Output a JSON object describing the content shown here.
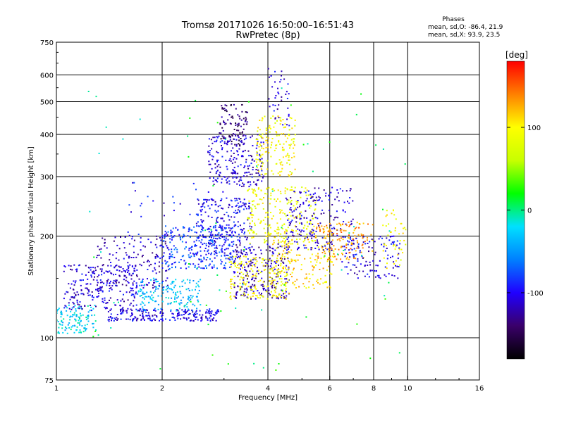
{
  "chart_data": {
    "type": "scatter",
    "title": "Tromsø 20171026 16:50:00–16:51:43",
    "subtitle": "RwPretec (8p)",
    "phases": {
      "heading": "Phases",
      "line_o": "mean, sd,O: -86.4, 21.9",
      "line_x": "mean, sd,X:  93.9, 23.5"
    },
    "xlabel": "Frequency [MHz]",
    "ylabel": "Stationary phase Virtual Height [km]",
    "x_scale": "log",
    "y_scale": "log",
    "xlim": [
      1,
      16
    ],
    "ylim": [
      75,
      750
    ],
    "x_ticks": [
      1,
      2,
      4,
      6,
      8,
      10,
      16
    ],
    "y_ticks": [
      75,
      100,
      200,
      300,
      400,
      500,
      600,
      750
    ],
    "x_grid": [
      2,
      4,
      6,
      8,
      10
    ],
    "y_grid": [
      100,
      200,
      300,
      400,
      500,
      600
    ],
    "grid": true,
    "colorbar": {
      "unit": "[deg]",
      "ticks": [
        100,
        0,
        -100
      ],
      "range": [
        -180,
        180
      ],
      "stops": [
        "#000000",
        "#3a006a",
        "#2000ff",
        "#0080ff",
        "#00e0ff",
        "#00ff00",
        "#c8ff00",
        "#ffff00",
        "#ff8000",
        "#ff0000"
      ]
    },
    "clusters": [
      {
        "x": [
          1.0,
          1.3
        ],
        "y": [
          103,
          125
        ],
        "phase": -25,
        "n": 120
      },
      {
        "x": [
          1.05,
          1.7
        ],
        "y": [
          120,
          165
        ],
        "phase": -110,
        "n": 260
      },
      {
        "x": [
          1.3,
          2.1
        ],
        "y": [
          140,
          200
        ],
        "phase": -115,
        "n": 160
      },
      {
        "x": [
          1.4,
          2.9
        ],
        "y": [
          112,
          122
        ],
        "phase": -105,
        "n": 220
      },
      {
        "x": [
          1.7,
          2.6
        ],
        "y": [
          120,
          150
        ],
        "phase": -35,
        "n": 160
      },
      {
        "x": [
          2.0,
          3.2
        ],
        "y": [
          160,
          215
        ],
        "phase": -80,
        "n": 260
      },
      {
        "x": [
          2.5,
          3.6
        ],
        "y": [
          170,
          260
        ],
        "phase": -100,
        "n": 250
      },
      {
        "x": [
          2.7,
          3.9
        ],
        "y": [
          280,
          400
        ],
        "phase": -110,
        "n": 220
      },
      {
        "x": [
          2.9,
          3.5
        ],
        "y": [
          370,
          490
        ],
        "phase": -140,
        "n": 90
      },
      {
        "x": [
          3.2,
          4.6
        ],
        "y": [
          130,
          190
        ],
        "phase": -120,
        "n": 220
      },
      {
        "x": [
          3.1,
          4.6
        ],
        "y": [
          130,
          175
        ],
        "phase": 95,
        "n": 180
      },
      {
        "x": [
          3.7,
          4.8
        ],
        "y": [
          300,
          460
        ],
        "phase": 95,
        "n": 160
      },
      {
        "x": [
          3.5,
          5.5
        ],
        "y": [
          190,
          280
        ],
        "phase": 90,
        "n": 230
      },
      {
        "x": [
          4.0,
          6.2
        ],
        "y": [
          140,
          210
        ],
        "phase": 110,
        "n": 190
      },
      {
        "x": [
          4.5,
          7.0
        ],
        "y": [
          180,
          280
        ],
        "phase": -110,
        "n": 200
      },
      {
        "x": [
          5.5,
          8.0
        ],
        "y": [
          170,
          220
        ],
        "phase": 130,
        "n": 130
      },
      {
        "x": [
          6.5,
          9.5
        ],
        "y": [
          150,
          200
        ],
        "phase": -105,
        "n": 120
      },
      {
        "x": [
          4.0,
          4.6
        ],
        "y": [
          420,
          630
        ],
        "phase": -110,
        "n": 40
      },
      {
        "x": [
          8.5,
          9.9
        ],
        "y": [
          160,
          240
        ],
        "phase": 95,
        "n": 45
      },
      {
        "x": [
          1.6,
          3.0
        ],
        "y": [
          200,
          290
        ],
        "phase": -100,
        "n": 35
      },
      {
        "x": [
          1.2,
          10.0
        ],
        "y": [
          80,
          560
        ],
        "phase": 10,
        "n": 80
      }
    ]
  }
}
